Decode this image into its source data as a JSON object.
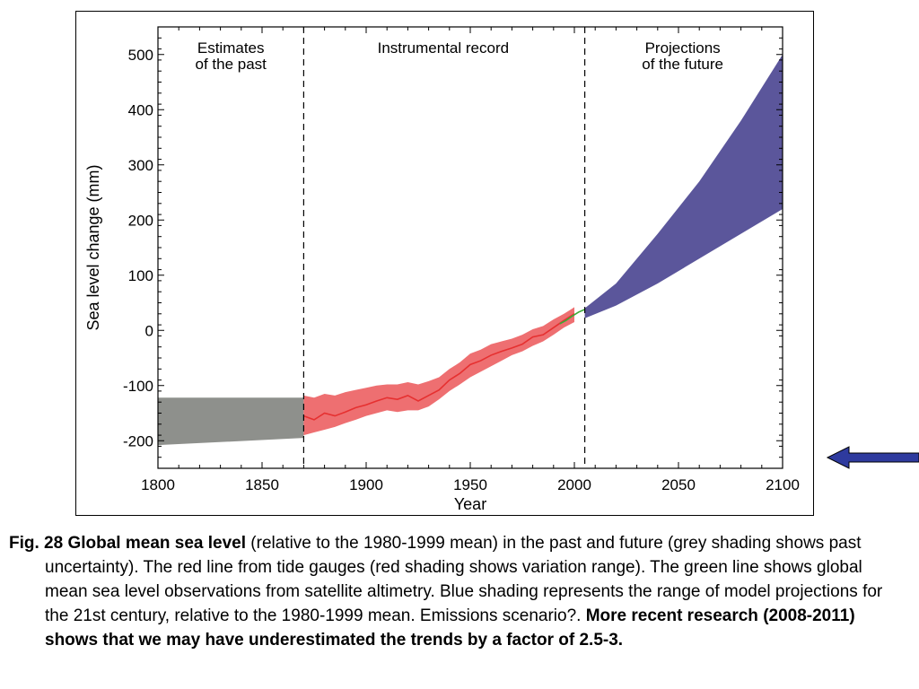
{
  "chart_data": {
    "type": "area",
    "title": "",
    "xlabel": "Year",
    "ylabel": "Sea level change (mm)",
    "xlim": [
      1800,
      2100
    ],
    "ylim": [
      -250,
      550
    ],
    "x_ticks": [
      1800,
      1850,
      1900,
      1950,
      2000,
      2050,
      2100
    ],
    "y_ticks": [
      -200,
      -100,
      0,
      100,
      200,
      300,
      400,
      500
    ],
    "grid": false,
    "period_dividers": [
      1870,
      2005
    ],
    "period_labels": [
      {
        "text": [
          "Estimates",
          "of the past"
        ],
        "x": 1835
      },
      {
        "text": [
          "Instrumental record"
        ],
        "x": 1937
      },
      {
        "text": [
          "Projections",
          "of the future"
        ],
        "x": 2052
      }
    ],
    "series": [
      {
        "name": "Estimates of the past",
        "kind": "band",
        "color": "#8e908c",
        "x": [
          1800,
          1870
        ],
        "lower": [
          -208,
          -195
        ],
        "upper": [
          -122,
          -122
        ]
      },
      {
        "name": "Tide gauges",
        "kind": "band_with_line",
        "color": "#e63030",
        "band_color": "#ee6f71",
        "x": [
          1870,
          1875,
          1880,
          1885,
          1890,
          1895,
          1900,
          1905,
          1910,
          1915,
          1920,
          1925,
          1930,
          1935,
          1940,
          1945,
          1950,
          1955,
          1960,
          1965,
          1970,
          1975,
          1980,
          1985,
          1990,
          1995,
          2000
        ],
        "line": [
          -155,
          -162,
          -150,
          -155,
          -148,
          -140,
          -135,
          -128,
          -122,
          -125,
          -118,
          -128,
          -118,
          -108,
          -90,
          -78,
          -62,
          -55,
          -45,
          -38,
          -32,
          -25,
          -12,
          -8,
          5,
          18,
          30
        ],
        "lower": [
          -190,
          -185,
          -180,
          -175,
          -168,
          -162,
          -155,
          -150,
          -145,
          -148,
          -145,
          -145,
          -138,
          -125,
          -110,
          -98,
          -85,
          -75,
          -65,
          -55,
          -45,
          -38,
          -28,
          -20,
          -8,
          5,
          15
        ],
        "upper": [
          -118,
          -122,
          -115,
          -118,
          -112,
          -108,
          -104,
          -100,
          -98,
          -98,
          -94,
          -98,
          -92,
          -85,
          -70,
          -58,
          -42,
          -35,
          -25,
          -20,
          -15,
          -8,
          2,
          8,
          20,
          30,
          42
        ]
      },
      {
        "name": "Satellite altimetry",
        "kind": "line",
        "color": "#3aaa35",
        "x": [
          1993,
          1996,
          1999,
          2002,
          2005
        ],
        "line": [
          12,
          18,
          26,
          33,
          38
        ]
      },
      {
        "name": "Model projections",
        "kind": "band",
        "color": "#5b569b",
        "x": [
          2005,
          2020,
          2040,
          2060,
          2080,
          2100
        ],
        "lower": [
          22,
          45,
          85,
          130,
          175,
          220
        ],
        "upper": [
          40,
          85,
          175,
          270,
          380,
          500
        ]
      }
    ]
  },
  "caption": {
    "prefix_bold": "Fig. 28 Global mean sea level",
    "body": " (relative to the 1980-1999 mean) in the past and future (grey shading shows past uncertainty). The red line from tide gauges (red shading shows variation range). The green line shows global mean sea level observations from satellite altimetry. Blue shading represents the range of model projections for  the 21st century, relative to the 1980-1999 mean. Emissions scenario?. ",
    "suffix_bold": "More recent research (2008-2011) shows that we may have underestimated the trends by a factor of 2.5-3."
  },
  "arrow": {
    "color": "#2e3a9e",
    "icon": "left-arrow-icon"
  }
}
